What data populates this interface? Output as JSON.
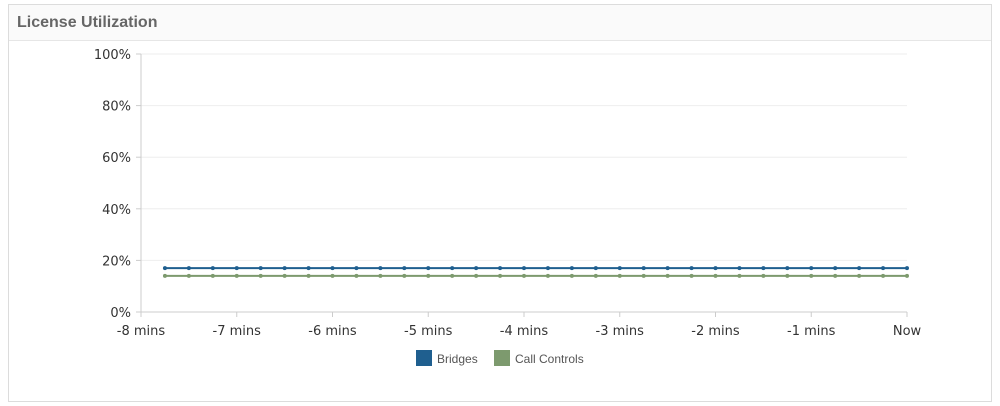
{
  "panel": {
    "title": "License Utilization"
  },
  "chart_data": {
    "type": "line",
    "title": "",
    "xlabel": "",
    "ylabel": "",
    "x_tick_labels": [
      "-8 mins",
      "-7 mins",
      "-6 mins",
      "-5 mins",
      "-4 mins",
      "-3 mins",
      "-2 mins",
      "-1 mins",
      "Now"
    ],
    "x_ticks": [
      -8,
      -7,
      -6,
      -5,
      -4,
      -3,
      -2,
      -1,
      0
    ],
    "xlim": [
      -8,
      0
    ],
    "y_tick_labels": [
      "0%",
      "20%",
      "40%",
      "60%",
      "80%",
      "100%"
    ],
    "y_ticks": [
      0,
      20,
      40,
      60,
      80,
      100
    ],
    "ylim": [
      0,
      100
    ],
    "grid": true,
    "legend_position": "bottom-center",
    "x": [
      -7.75,
      -7.5,
      -7.25,
      -7.0,
      -6.75,
      -6.5,
      -6.25,
      -6.0,
      -5.75,
      -5.5,
      -5.25,
      -5.0,
      -4.75,
      -4.5,
      -4.25,
      -4.0,
      -3.75,
      -3.5,
      -3.25,
      -3.0,
      -2.75,
      -2.5,
      -2.25,
      -2.0,
      -1.75,
      -1.5,
      -1.25,
      -1.0,
      -0.75,
      -0.5,
      -0.25,
      0.0
    ],
    "series": [
      {
        "name": "Bridges",
        "color": "#1f5f8f",
        "values": [
          17,
          17,
          17,
          17,
          17,
          17,
          17,
          17,
          17,
          17,
          17,
          17,
          17,
          17,
          17,
          17,
          17,
          17,
          17,
          17,
          17,
          17,
          17,
          17,
          17,
          17,
          17,
          17,
          17,
          17,
          17,
          17
        ]
      },
      {
        "name": "Call Controls",
        "color": "#7d9a6e",
        "values": [
          14,
          14,
          14,
          14,
          14,
          14,
          14,
          14,
          14,
          14,
          14,
          14,
          14,
          14,
          14,
          14,
          14,
          14,
          14,
          14,
          14,
          14,
          14,
          14,
          14,
          14,
          14,
          14,
          14,
          14,
          14,
          14
        ]
      }
    ]
  }
}
